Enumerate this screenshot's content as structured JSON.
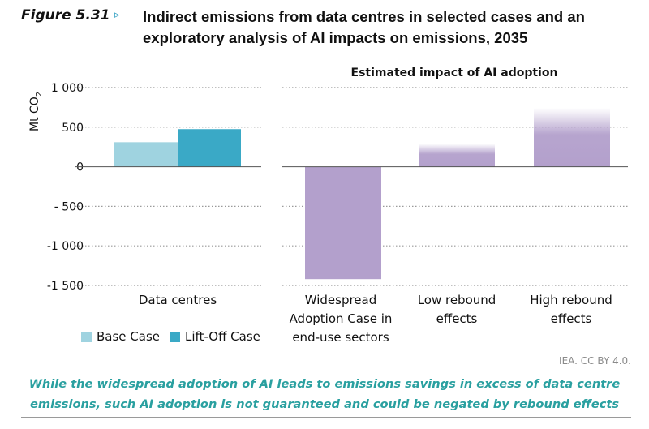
{
  "figure": {
    "label": "Figure 5.31",
    "arrow": "▹",
    "title": "Indirect emissions from data centres in selected cases and an exploratory analysis of AI impacts on emissions, 2035"
  },
  "chart_data": {
    "type": "bar",
    "title": "Indirect emissions from data centres in selected cases and an exploratory analysis of AI impacts on emissions, 2035",
    "subtitle": "Estimated impact of AI adoption",
    "ylabel": "Mt CO",
    "ylabel_sub": "2",
    "ylim": [
      -1500,
      1000
    ],
    "yticks": [
      1000,
      500,
      0,
      -500,
      -1000,
      -1500
    ],
    "ytick_labels": [
      "1 000",
      "500",
      "0",
      "- 500",
      "-1 000",
      "-1 500"
    ],
    "grid": true,
    "data_centres": {
      "category": "Data centres",
      "series": [
        {
          "name": "Base Case",
          "value": 310,
          "color": "#9fd3e0"
        },
        {
          "name": "Lift-Off Case",
          "value": 475,
          "color": "#3aa9c6"
        }
      ]
    },
    "ai_impacts": {
      "color": "#b3a0cc",
      "bars": [
        {
          "label": "Widespread Adoption Case in end-use sectors",
          "value": -1420,
          "gradient": false
        },
        {
          "label": "Low rebound effects",
          "value": 290,
          "gradient": true
        },
        {
          "label": "High rebound effects",
          "value": 740,
          "gradient": true
        }
      ]
    }
  },
  "categories": {
    "data_centres": "Data centres",
    "widespread_line1": "Widespread",
    "widespread_line2": "Adoption Case in",
    "widespread_line3": "end-use sectors",
    "low_line1": "Low rebound",
    "low_line2": "effects",
    "high_line1": "High rebound",
    "high_line2": "effects"
  },
  "legend": {
    "base_label": "Base Case",
    "liftoff_label": "Lift-Off Case",
    "base_color": "#9fd3e0",
    "liftoff_color": "#3aa9c6"
  },
  "credit": "IEA. CC BY 4.0.",
  "caption": {
    "line1": "While the widespread adoption of AI leads to emissions savings in excess of data centre",
    "line2": "emissions, such AI adoption is not guaranteed and could be negated by rebound effects"
  }
}
